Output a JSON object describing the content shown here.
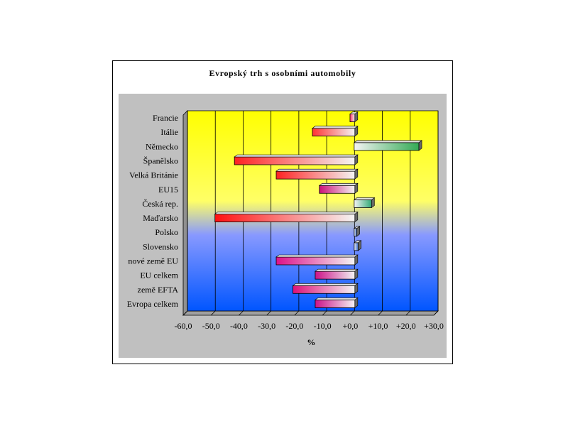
{
  "chart_data": {
    "type": "bar",
    "orientation": "horizontal",
    "title": "Evropský trh s osobními automobily",
    "xlabel": "%",
    "ylabel": "",
    "xlim": [
      -60,
      30
    ],
    "xticks": [
      "-60,0",
      "-50,0",
      "-40,0",
      "-30,0",
      "-20,0",
      "-10,0",
      "+0,0",
      "+10,0",
      "+20,0",
      "+30,0"
    ],
    "grid": "vertical",
    "background_gradient": [
      "#ffff00",
      "#0055ff"
    ],
    "categories": [
      "Francie",
      "Itálie",
      "Německo",
      "Španělsko",
      "Velká Británie",
      "EU15",
      "Česká rep.",
      "Maďarsko",
      "Polsko",
      "Slovensko",
      "nové země EU",
      "EU celkem",
      "země EFTA",
      "Evropa celkem"
    ],
    "values": [
      -1.5,
      -15,
      23,
      -43,
      -28,
      -12.5,
      6,
      -50,
      0.7,
      1.2,
      -28,
      -14,
      -22,
      -14
    ],
    "bar_colors": [
      "#ff3366",
      "#ff3333",
      "#33aa55",
      "#ff2222",
      "#ff2222",
      "#cc1177",
      "#33aa77",
      "#ff1111",
      "#3366cc",
      "#3366cc",
      "#dd1188",
      "#cc1188",
      "#dd1177",
      "#cc1188"
    ]
  }
}
